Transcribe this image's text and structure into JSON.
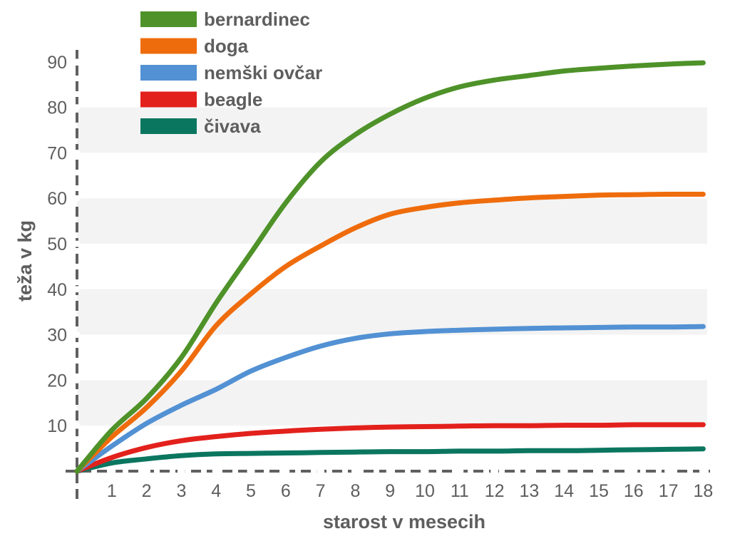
{
  "chart_data": {
    "type": "line",
    "xlabel": "starost v mesecih",
    "ylabel": "teža v kg",
    "xlim": [
      0,
      18
    ],
    "ylim": [
      0,
      90
    ],
    "x_ticks": [
      1,
      2,
      3,
      4,
      5,
      6,
      7,
      8,
      9,
      10,
      11,
      12,
      13,
      14,
      15,
      16,
      17,
      18
    ],
    "y_ticks": [
      10,
      20,
      30,
      40,
      50,
      60,
      70,
      80,
      90
    ],
    "grid": "alternating horizontal bands",
    "legend_position": "top-left",
    "x": [
      0,
      1,
      2,
      3,
      4,
      5,
      6,
      7,
      8,
      9,
      10,
      11,
      12,
      13,
      14,
      15,
      16,
      17,
      18
    ],
    "series": [
      {
        "name": "bernardinec",
        "color": "#4e9229",
        "values": [
          0,
          9,
          16,
          25,
          37,
          48,
          59,
          68,
          74,
          78.5,
          82,
          84.5,
          86,
          87,
          88,
          88.6,
          89.1,
          89.5,
          89.8
        ]
      },
      {
        "name": "doga",
        "color": "#ef6c0c",
        "values": [
          0,
          7.5,
          14,
          22,
          32,
          39,
          45,
          49.5,
          53.5,
          56.5,
          58,
          59,
          59.6,
          60.1,
          60.4,
          60.7,
          60.8,
          60.9,
          60.9
        ]
      },
      {
        "name": "nemški ovčar",
        "color": "#5291d3",
        "values": [
          0,
          5.5,
          10.5,
          14.5,
          18,
          22,
          25,
          27.5,
          29.2,
          30.2,
          30.7,
          31,
          31.2,
          31.4,
          31.5,
          31.6,
          31.7,
          31.7,
          31.8
        ]
      },
      {
        "name": "beagle",
        "color": "#e3211c",
        "values": [
          0,
          3,
          5.2,
          6.7,
          7.6,
          8.3,
          8.8,
          9.2,
          9.5,
          9.7,
          9.8,
          9.9,
          10,
          10,
          10.1,
          10.1,
          10.2,
          10.2,
          10.2
        ]
      },
      {
        "name": "čivava",
        "color": "#0b7660",
        "values": [
          0,
          1.8,
          2.7,
          3.4,
          3.8,
          3.9,
          4,
          4.1,
          4.2,
          4.3,
          4.3,
          4.4,
          4.4,
          4.5,
          4.5,
          4.6,
          4.7,
          4.8,
          4.9
        ]
      }
    ]
  }
}
